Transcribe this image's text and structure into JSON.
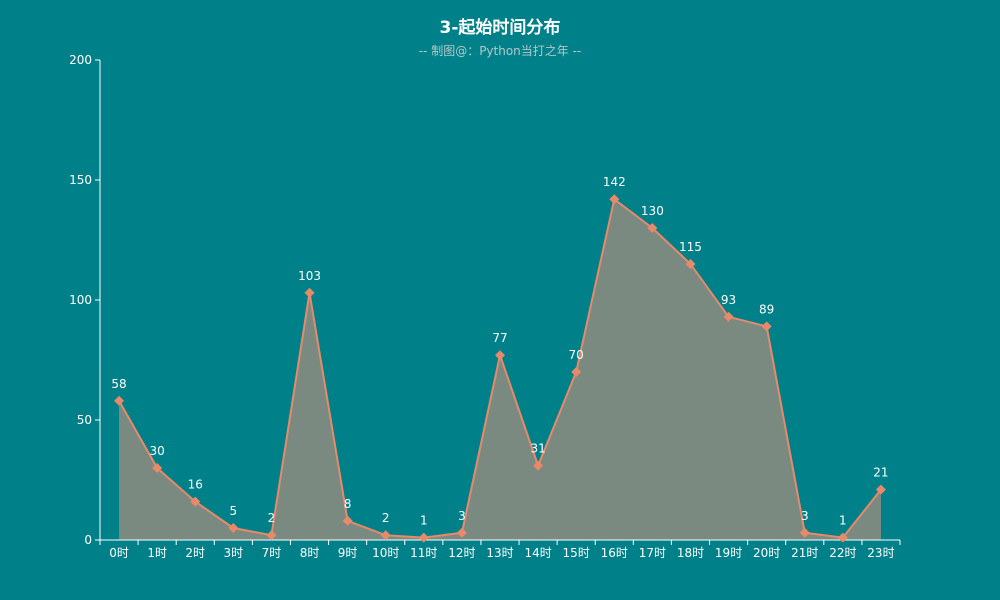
{
  "chart_data": {
    "type": "area",
    "title": "3-起始时间分布",
    "subtitle": "-- 制图@：Python当打之年 --",
    "categories": [
      "0时",
      "1时",
      "2时",
      "3时",
      "7时",
      "8时",
      "9时",
      "10时",
      "11时",
      "12时",
      "13时",
      "14时",
      "15时",
      "16时",
      "17时",
      "18时",
      "19时",
      "20时",
      "21时",
      "22时",
      "23时"
    ],
    "values": [
      58,
      30,
      16,
      5,
      2,
      103,
      8,
      2,
      1,
      3,
      77,
      31,
      70,
      142,
      130,
      115,
      93,
      89,
      3,
      1,
      21
    ],
    "ylim": [
      0,
      200
    ],
    "yticks": [
      0,
      50,
      100,
      150,
      200
    ],
    "xlabel": "",
    "ylabel": "",
    "grid": false,
    "legend": "none",
    "marker": "diamond",
    "colors": {
      "background": "#008189",
      "line": "#e8896a",
      "area": "#7a8a80",
      "marker": "#e8896a",
      "text": "#ffffff",
      "subtitle": "#b7c8c9",
      "axis": "#ffffff"
    }
  }
}
